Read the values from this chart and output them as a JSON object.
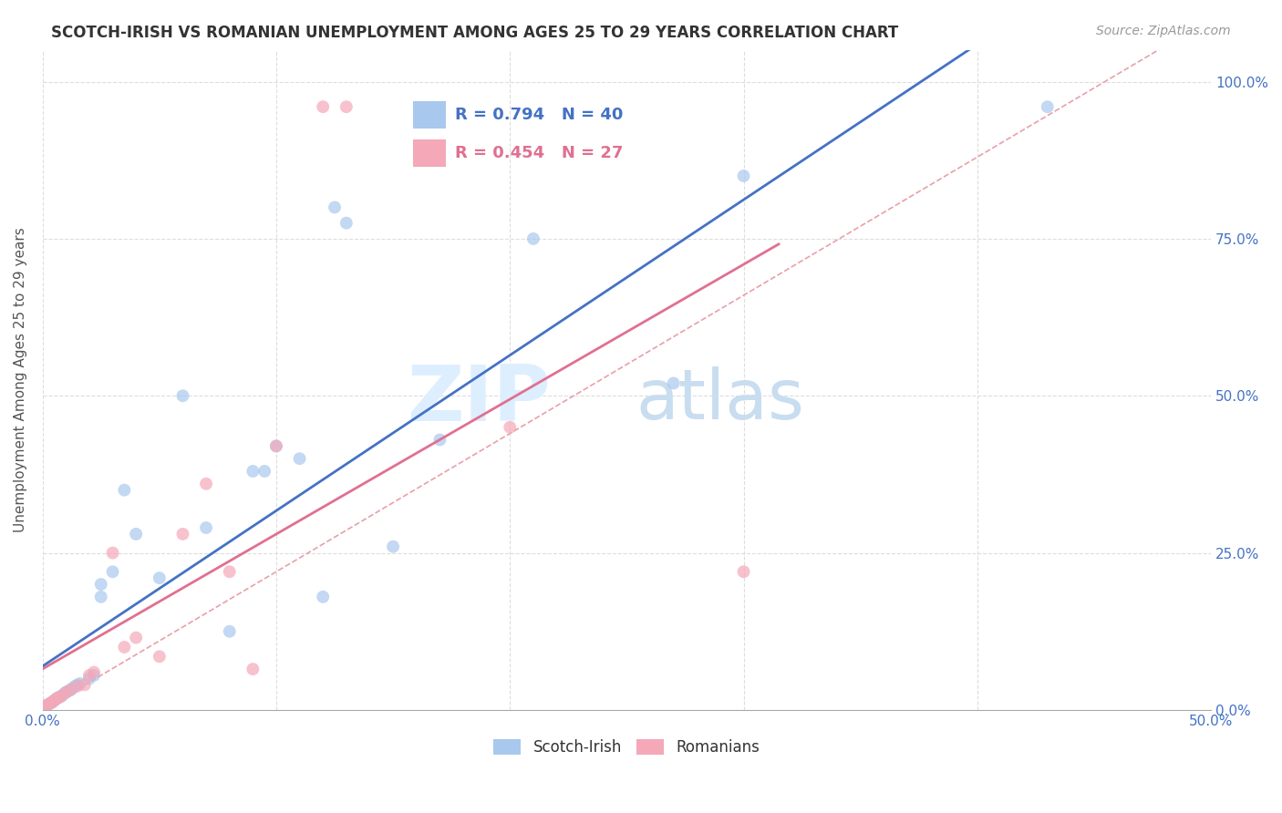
{
  "title": "SCOTCH-IRISH VS ROMANIAN UNEMPLOYMENT AMONG AGES 25 TO 29 YEARS CORRELATION CHART",
  "source": "Source: ZipAtlas.com",
  "ylabel": "Unemployment Among Ages 25 to 29 years",
  "xmin": 0.0,
  "xmax": 0.5,
  "ymin": 0.0,
  "ymax": 1.05,
  "xticks": [
    0.0,
    0.1,
    0.2,
    0.3,
    0.4,
    0.5
  ],
  "xticklabels": [
    "0.0%",
    "",
    "",
    "",
    "",
    "50.0%"
  ],
  "yticks": [
    0.0,
    0.25,
    0.5,
    0.75,
    1.0
  ],
  "yticklabels_right": [
    "0.0%",
    "25.0%",
    "50.0%",
    "75.0%",
    "100.0%"
  ],
  "scotch_irish_color": "#A8C8EE",
  "romanian_color": "#F4A8B8",
  "scotch_irish_R": 0.794,
  "scotch_irish_N": 40,
  "romanian_R": 0.454,
  "romanian_N": 27,
  "legend_label_1": "Scotch-Irish",
  "legend_label_2": "Romanians",
  "scotch_irish_x": [
    0.001,
    0.002,
    0.003,
    0.004,
    0.005,
    0.006,
    0.007,
    0.008,
    0.009,
    0.01,
    0.011,
    0.012,
    0.013,
    0.014,
    0.015,
    0.016,
    0.02,
    0.022,
    0.025,
    0.025,
    0.03,
    0.035,
    0.04,
    0.05,
    0.06,
    0.07,
    0.08,
    0.09,
    0.095,
    0.1,
    0.11,
    0.12,
    0.125,
    0.13,
    0.15,
    0.17,
    0.21,
    0.27,
    0.3,
    0.43
  ],
  "scotch_irish_y": [
    0.005,
    0.008,
    0.01,
    0.012,
    0.015,
    0.018,
    0.02,
    0.022,
    0.025,
    0.028,
    0.03,
    0.032,
    0.035,
    0.038,
    0.04,
    0.042,
    0.05,
    0.055,
    0.2,
    0.18,
    0.22,
    0.35,
    0.28,
    0.21,
    0.5,
    0.29,
    0.125,
    0.38,
    0.38,
    0.42,
    0.4,
    0.18,
    0.8,
    0.775,
    0.26,
    0.43,
    0.75,
    0.52,
    0.85,
    0.96
  ],
  "romanian_x": [
    0.001,
    0.002,
    0.003,
    0.004,
    0.005,
    0.006,
    0.007,
    0.008,
    0.01,
    0.012,
    0.015,
    0.018,
    0.02,
    0.022,
    0.03,
    0.035,
    0.04,
    0.05,
    0.06,
    0.07,
    0.08,
    0.09,
    0.1,
    0.12,
    0.13,
    0.2,
    0.3
  ],
  "romanian_y": [
    0.005,
    0.008,
    0.01,
    0.012,
    0.015,
    0.018,
    0.02,
    0.022,
    0.028,
    0.032,
    0.038,
    0.04,
    0.055,
    0.06,
    0.25,
    0.1,
    0.115,
    0.085,
    0.28,
    0.36,
    0.22,
    0.065,
    0.42,
    0.96,
    0.96,
    0.45,
    0.22
  ],
  "trendline_color_si": "#4472C4",
  "trendline_color_ro": "#E07090",
  "trendline_dashed_color": "#E8A0A8",
  "watermark_zip": "ZIP",
  "watermark_atlas": "atlas",
  "watermark_color": "#DDEEFF",
  "background_color": "#FFFFFF",
  "scatter_size": 100,
  "scatter_alpha": 0.7,
  "scatter_lw": 0,
  "trendline_lw": 2.0
}
